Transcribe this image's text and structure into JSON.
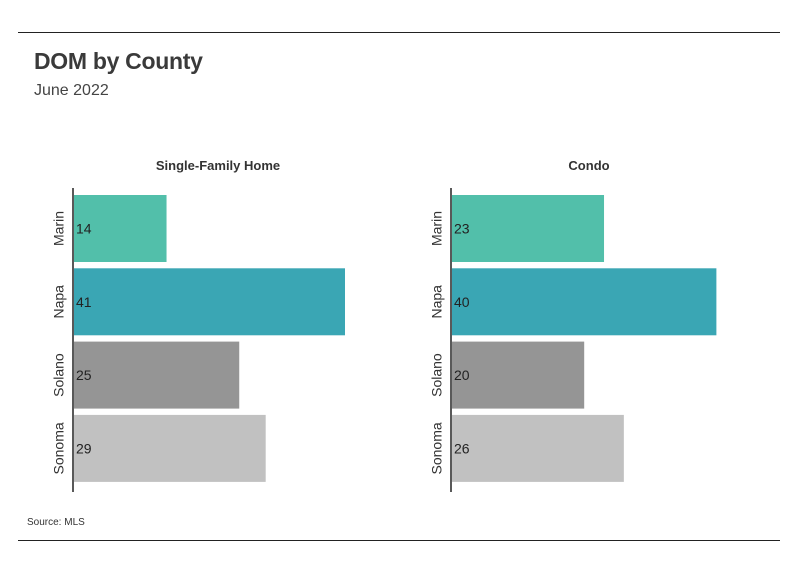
{
  "header": {
    "title": "DOM by County",
    "subtitle": "June 2022"
  },
  "footer": {
    "source": "Source:  MLS"
  },
  "colors": {
    "Marin": "#52bfaa",
    "Napa": "#3aa6b4",
    "Solano": "#959595",
    "Sonoma": "#c1c1c1",
    "axis": "#222222"
  },
  "chart_data": {
    "type": "bar",
    "orientation": "horizontal",
    "title": "DOM by County",
    "subtitle": "June 2022",
    "categories": [
      "Marin",
      "Napa",
      "Solano",
      "Sonoma"
    ],
    "xlim": [
      0,
      41
    ],
    "grid": false,
    "legend": "none",
    "data_labels": "inside-left",
    "panels": [
      {
        "title": "Single-Family Home",
        "values": [
          14,
          41,
          25,
          29
        ]
      },
      {
        "title": "Condo",
        "values": [
          23,
          40,
          20,
          26
        ]
      }
    ]
  }
}
